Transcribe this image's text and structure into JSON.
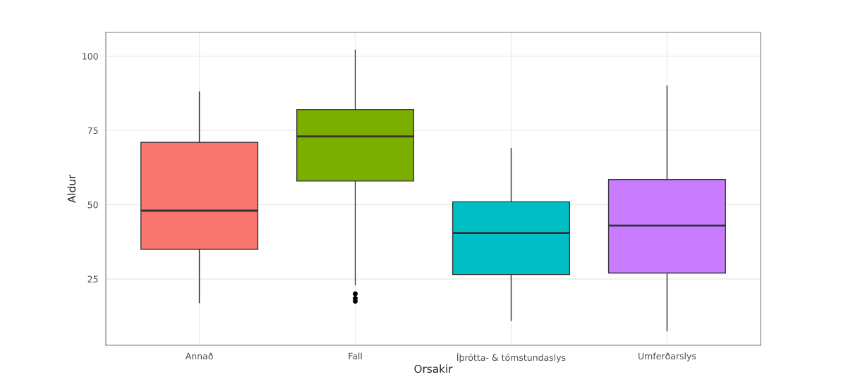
{
  "chart_data": {
    "type": "box",
    "xlabel": "Orsakir",
    "ylabel": "Aldur",
    "categories": [
      "Annað",
      "Fall",
      "Íþrótta- & tómstundaslys",
      "Umferðarslys"
    ],
    "colors": [
      "#f8766d",
      "#7cae00",
      "#00bfc4",
      "#c77cff"
    ],
    "boxes": [
      {
        "low": 17,
        "q1": 35,
        "median": 48,
        "q3": 71,
        "high": 88
      },
      {
        "low": 23,
        "q1": 58,
        "median": 73,
        "q3": 82,
        "high": 102,
        "outliers": [
          20,
          18.5,
          17.5
        ]
      },
      {
        "low": 11,
        "q1": 26.5,
        "median": 40.5,
        "q3": 51,
        "high": 69
      },
      {
        "low": 7.5,
        "q1": 27,
        "median": 43,
        "q3": 58.5,
        "high": 90
      }
    ],
    "ylim": [
      2.7,
      108
    ],
    "yticks": [
      25,
      50,
      75,
      100
    ],
    "grid": true
  }
}
